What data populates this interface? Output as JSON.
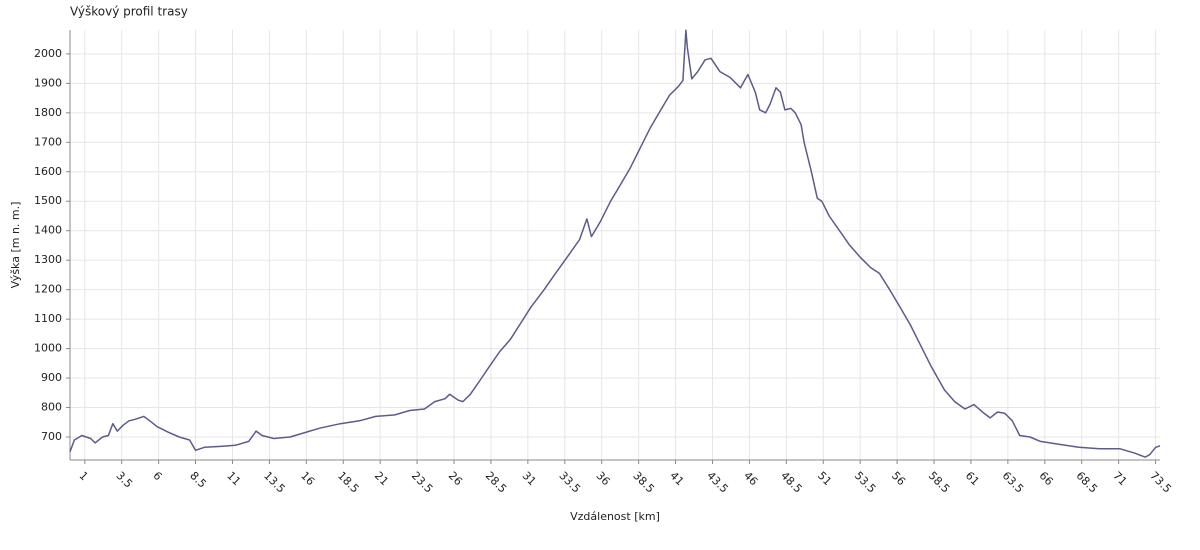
{
  "chart_data": {
    "type": "line",
    "title": "Výškový profil trasy",
    "xlabel": "Vzdálenost [km]",
    "ylabel": "Výška [m n. m.]",
    "grid": true,
    "xlim": [
      0,
      73.8
    ],
    "ylim": [
      622,
      2081
    ],
    "xticks": [
      1,
      3.5,
      6,
      8.5,
      11,
      13.5,
      16,
      18.5,
      21,
      23.5,
      26,
      28.5,
      31,
      33.5,
      36,
      38.5,
      41,
      43.5,
      46,
      48.5,
      51,
      53.5,
      56,
      58.5,
      61,
      63.5,
      66,
      68.5,
      71,
      73.5
    ],
    "yticks": [
      700,
      800,
      900,
      1000,
      1100,
      1200,
      1300,
      1400,
      1500,
      1600,
      1700,
      1800,
      1900,
      2000
    ],
    "x": [
      0,
      0.3,
      0.8,
      1.4,
      1.7,
      2.2,
      2.6,
      2.9,
      3.2,
      3.6,
      4.0,
      4.4,
      5.0,
      5.4,
      5.9,
      6.7,
      7.4,
      8.1,
      8.5,
      9.1,
      10.2,
      11.2,
      12.1,
      12.6,
      13.0,
      13.8,
      14.9,
      15.9,
      16.9,
      18.3,
      19.6,
      20.7,
      22.0,
      23.0,
      24.0,
      24.7,
      25.4,
      25.7,
      26.3,
      26.6,
      27.1,
      27.8,
      28.4,
      29.1,
      29.8,
      30.5,
      31.2,
      32.1,
      32.8,
      33.8,
      34.5,
      35.0,
      35.3,
      35.9,
      36.6,
      37.2,
      37.9,
      38.6,
      39.3,
      40.0,
      40.6,
      41.2,
      41.5,
      41.7,
      41.8,
      42.1,
      42.5,
      43.0,
      43.4,
      44.0,
      44.7,
      45.4,
      45.9,
      46.4,
      46.7,
      47.1,
      47.4,
      47.8,
      48.1,
      48.4,
      48.8,
      49.1,
      49.5,
      49.7,
      50.2,
      50.6,
      50.9,
      51.4,
      52.1,
      52.8,
      53.5,
      54.2,
      54.8,
      55.5,
      56.2,
      56.9,
      57.6,
      58.3,
      59.2,
      59.9,
      60.6,
      61.2,
      61.9,
      62.3,
      62.8,
      63.3,
      63.8,
      64.3,
      65.0,
      65.7,
      67.0,
      68.3,
      69.7,
      71.1,
      72.1,
      72.8,
      73.1,
      73.5,
      73.8
    ],
    "series": [
      {
        "color": "#5b5b8c",
        "values": [
          650,
          690,
          705,
          695,
          680,
          700,
          705,
          745,
          720,
          740,
          755,
          760,
          770,
          755,
          735,
          715,
          700,
          690,
          655,
          665,
          668,
          672,
          685,
          720,
          705,
          695,
          700,
          715,
          730,
          745,
          755,
          770,
          775,
          790,
          795,
          820,
          830,
          845,
          825,
          820,
          845,
          895,
          940,
          990,
          1030,
          1085,
          1140,
          1200,
          1250,
          1320,
          1370,
          1440,
          1380,
          1430,
          1500,
          1550,
          1610,
          1680,
          1750,
          1810,
          1860,
          1890,
          1910,
          2080,
          2020,
          1915,
          1940,
          1980,
          1985,
          1940,
          1920,
          1885,
          1930,
          1870,
          1810,
          1800,
          1830,
          1885,
          1870,
          1810,
          1815,
          1800,
          1760,
          1700,
          1600,
          1510,
          1500,
          1450,
          1400,
          1350,
          1310,
          1275,
          1255,
          1200,
          1140,
          1080,
          1010,
          940,
          860,
          820,
          795,
          810,
          780,
          765,
          785,
          780,
          755,
          705,
          700,
          685,
          675,
          665,
          660,
          660,
          645,
          632,
          640,
          665,
          670
        ]
      }
    ]
  }
}
